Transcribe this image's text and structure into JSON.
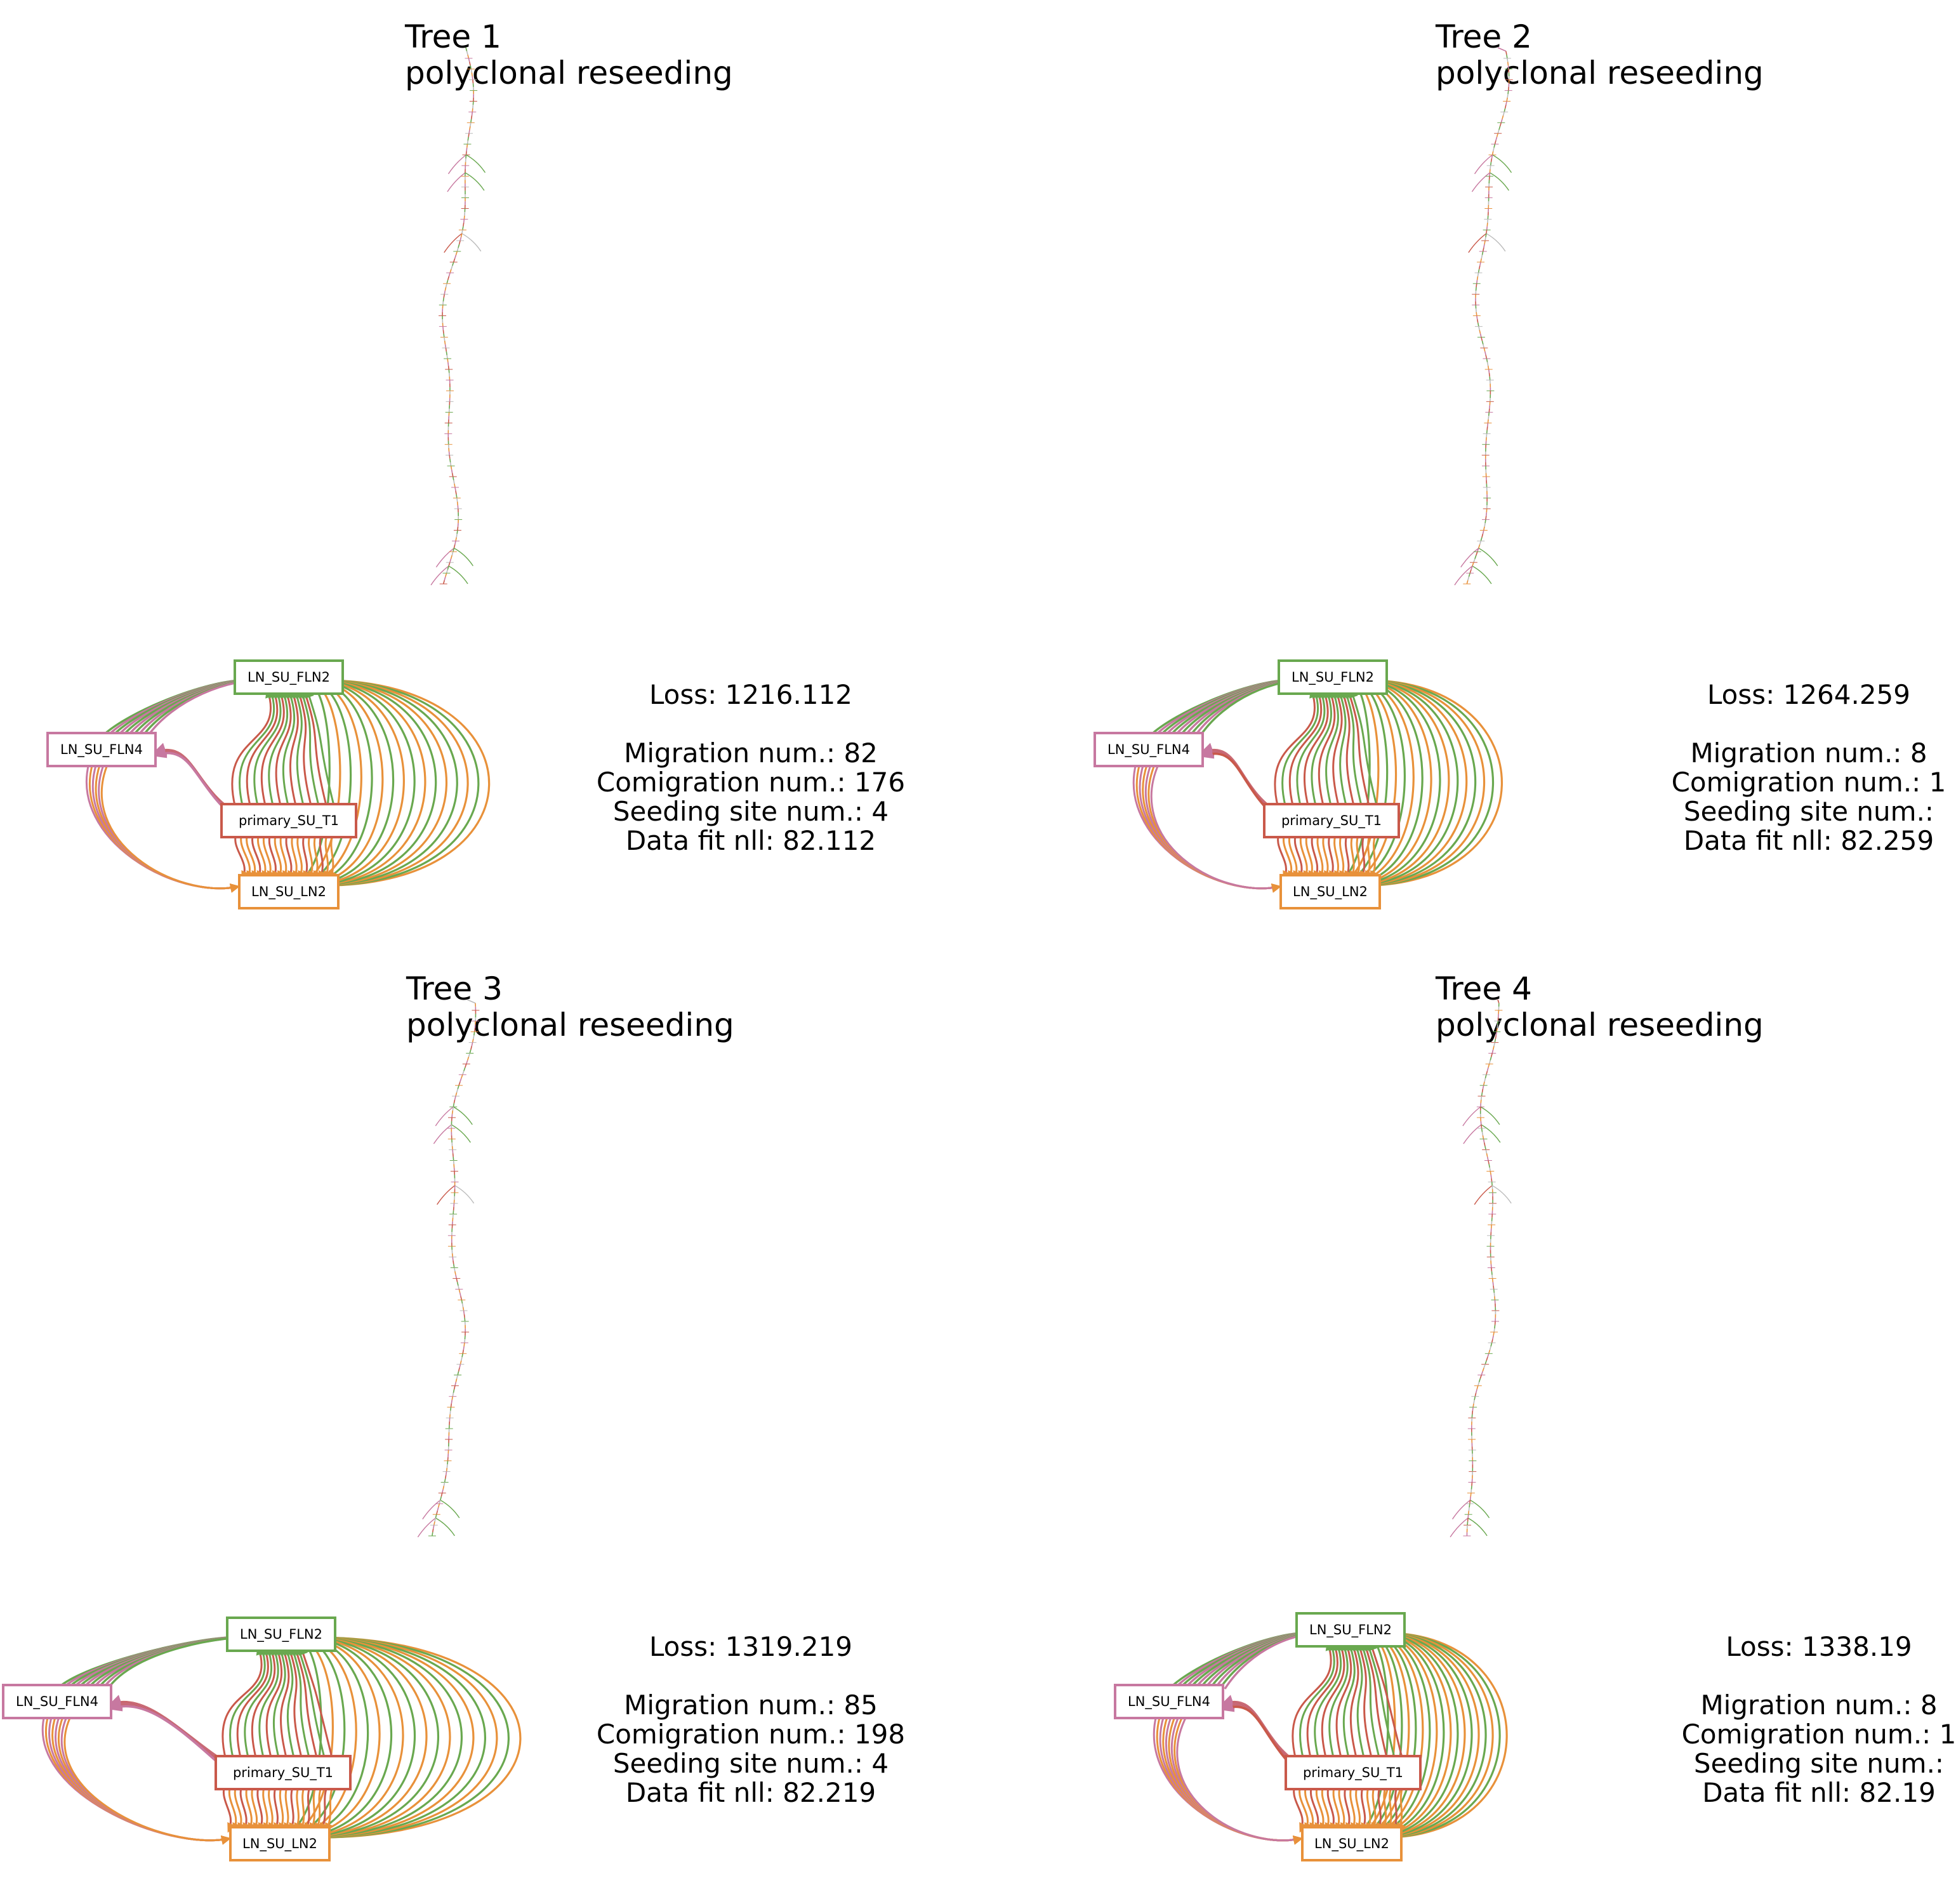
{
  "colors": {
    "primary": "#c9594a",
    "ln2": "#e8913a",
    "fln2": "#69a84f",
    "fln4": "#c778a0",
    "tree_edge": "#bbbbbb"
  },
  "sites": {
    "fln2": "LN_SU_FLN2",
    "fln4": "LN_SU_FLN4",
    "primary": "primary_SU_T1",
    "ln2": "LN_SU_LN2"
  },
  "panels": [
    {
      "title": "Tree 1",
      "subtitle": "polyclonal reseeding",
      "loss": "Loss: 1216.112",
      "migration": "Migration num.: 82",
      "comigration": "Comigration num.: 176",
      "seeding": "Seeding site num.: 4",
      "datafit": "Data fit nll: 82.112",
      "edge_counts": {
        "p_to_ln2": 18,
        "p_to_fln2": 14,
        "p_to_fln4": 6,
        "ln2_to_fln2": 16,
        "fln4_to_fln2": 10
      }
    },
    {
      "title": "Tree 2",
      "subtitle": "polyclonal reseeding",
      "loss": "Loss: 1264.259",
      "migration": "Migration num.: 8",
      "comigration": "Comigration num.: 1",
      "seeding": "Seeding site num.:",
      "datafit": "Data fit nll: 82.259",
      "edge_counts": {
        "p_to_ln2": 18,
        "p_to_fln2": 14,
        "p_to_fln4": 7,
        "ln2_to_fln2": 16,
        "fln4_to_fln2": 11
      }
    },
    {
      "title": "Tree 3",
      "subtitle": "polyclonal reseeding",
      "loss": "Loss: 1319.219",
      "migration": "Migration num.: 85",
      "comigration": "Comigration num.: 198",
      "seeding": "Seeding site num.: 4",
      "datafit": "Data fit nll: 82.219",
      "edge_counts": {
        "p_to_ln2": 20,
        "p_to_fln2": 15,
        "p_to_fln4": 8,
        "ln2_to_fln2": 18,
        "fln4_to_fln2": 11
      }
    },
    {
      "title": "Tree 4",
      "subtitle": "polyclonal reseeding",
      "loss": "Loss: 1338.19",
      "migration": "Migration num.: 8",
      "comigration": "Comigration num.: 1",
      "seeding": "Seeding site num.:",
      "datafit": "Data fit nll: 82.19",
      "edge_counts": {
        "p_to_ln2": 20,
        "p_to_fln2": 15,
        "p_to_fln4": 9,
        "ln2_to_fln2": 18,
        "fln4_to_fln2": 12
      }
    }
  ]
}
